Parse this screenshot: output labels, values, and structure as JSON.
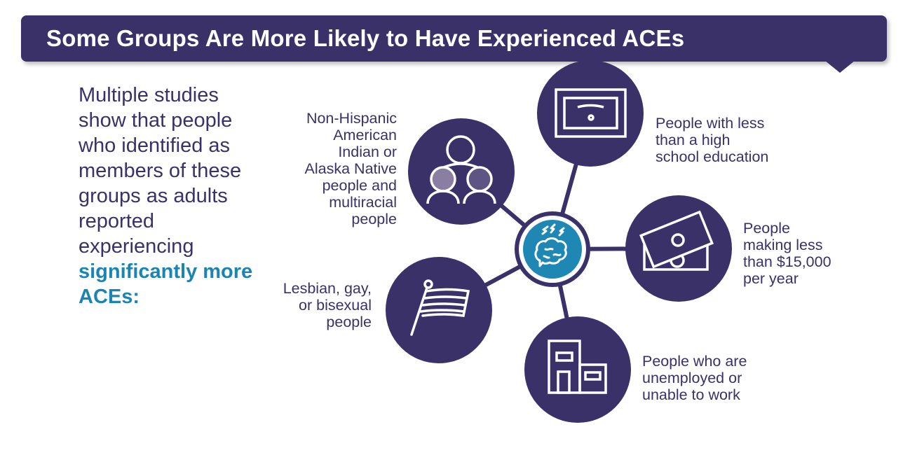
{
  "header": {
    "title": "Some Groups Are More Likely to Have Experienced ACEs"
  },
  "intro": {
    "text": "Multiple studies show that people who identified as members of these groups as adults reported experiencing",
    "highlight": "significantly more ACEs:"
  },
  "colors": {
    "primary": "#3b3169",
    "accent": "#1f87b4"
  },
  "center": {
    "icon": "brain-stress-icon"
  },
  "groups": [
    {
      "icon": "people-group-icon",
      "label_lines": [
        "Non-Hispanic",
        "American",
        "Indian or",
        "Alaska Native",
        "people and",
        "multiracial",
        "people"
      ]
    },
    {
      "icon": "diploma-icon",
      "label_lines": [
        "People with less",
        "than a high",
        "school education"
      ]
    },
    {
      "icon": "money-icon",
      "label_lines": [
        "People",
        "making less",
        "than $15,000",
        "per year"
      ]
    },
    {
      "icon": "flag-icon",
      "label_lines": [
        "Lesbian, gay,",
        "or bisexual",
        "people"
      ]
    },
    {
      "icon": "building-icon",
      "label_lines": [
        "People who are",
        "unemployed or",
        "unable to work"
      ]
    }
  ]
}
